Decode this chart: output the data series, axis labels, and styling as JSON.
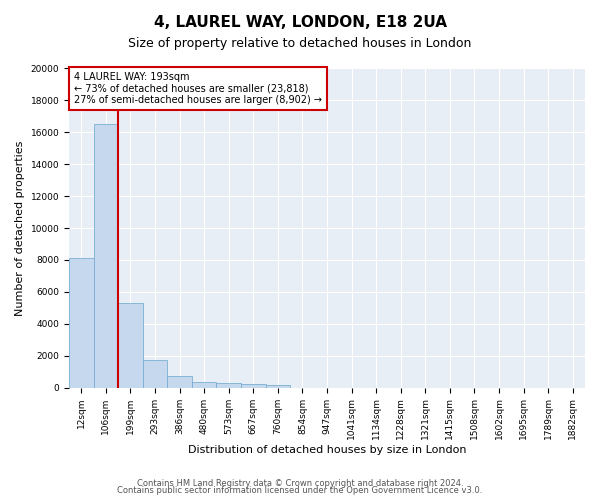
{
  "title": "4, LAUREL WAY, LONDON, E18 2UA",
  "subtitle": "Size of property relative to detached houses in London",
  "xlabel": "Distribution of detached houses by size in London",
  "ylabel": "Number of detached properties",
  "bar_values": [
    8100,
    16500,
    5300,
    1750,
    750,
    350,
    270,
    200,
    150,
    0,
    0,
    0,
    0,
    0,
    0,
    0,
    0,
    0,
    0,
    0,
    0
  ],
  "bar_labels": [
    "12sqm",
    "106sqm",
    "199sqm",
    "293sqm",
    "386sqm",
    "480sqm",
    "573sqm",
    "667sqm",
    "760sqm",
    "854sqm",
    "947sqm",
    "1041sqm",
    "1134sqm",
    "1228sqm",
    "1321sqm",
    "1415sqm",
    "1508sqm",
    "1602sqm",
    "1695sqm",
    "1789sqm",
    "1882sqm"
  ],
  "bar_color": "#c5d8ed",
  "bar_edge_color": "#7aafd4",
  "vline_x": 1.5,
  "annotation_text": "4 LAUREL WAY: 193sqm\n← 73% of detached houses are smaller (23,818)\n27% of semi-detached houses are larger (8,902) →",
  "annotation_box_facecolor": "#ffffff",
  "annotation_box_edgecolor": "#cc0000",
  "vline_color": "#cc0000",
  "ylim": [
    0,
    20000
  ],
  "yticks": [
    0,
    2000,
    4000,
    6000,
    8000,
    10000,
    12000,
    14000,
    16000,
    18000,
    20000
  ],
  "fig_facecolor": "#ffffff",
  "plot_facecolor": "#e8eef5",
  "grid_color": "#ffffff",
  "title_fontsize": 11,
  "subtitle_fontsize": 9,
  "ylabel_fontsize": 8,
  "xlabel_fontsize": 8,
  "tick_fontsize": 6.5,
  "annotation_fontsize": 7,
  "footer_line1": "Contains HM Land Registry data © Crown copyright and database right 2024.",
  "footer_line2": "Contains public sector information licensed under the Open Government Licence v3.0.",
  "footer_fontsize": 6,
  "n_bars": 21
}
